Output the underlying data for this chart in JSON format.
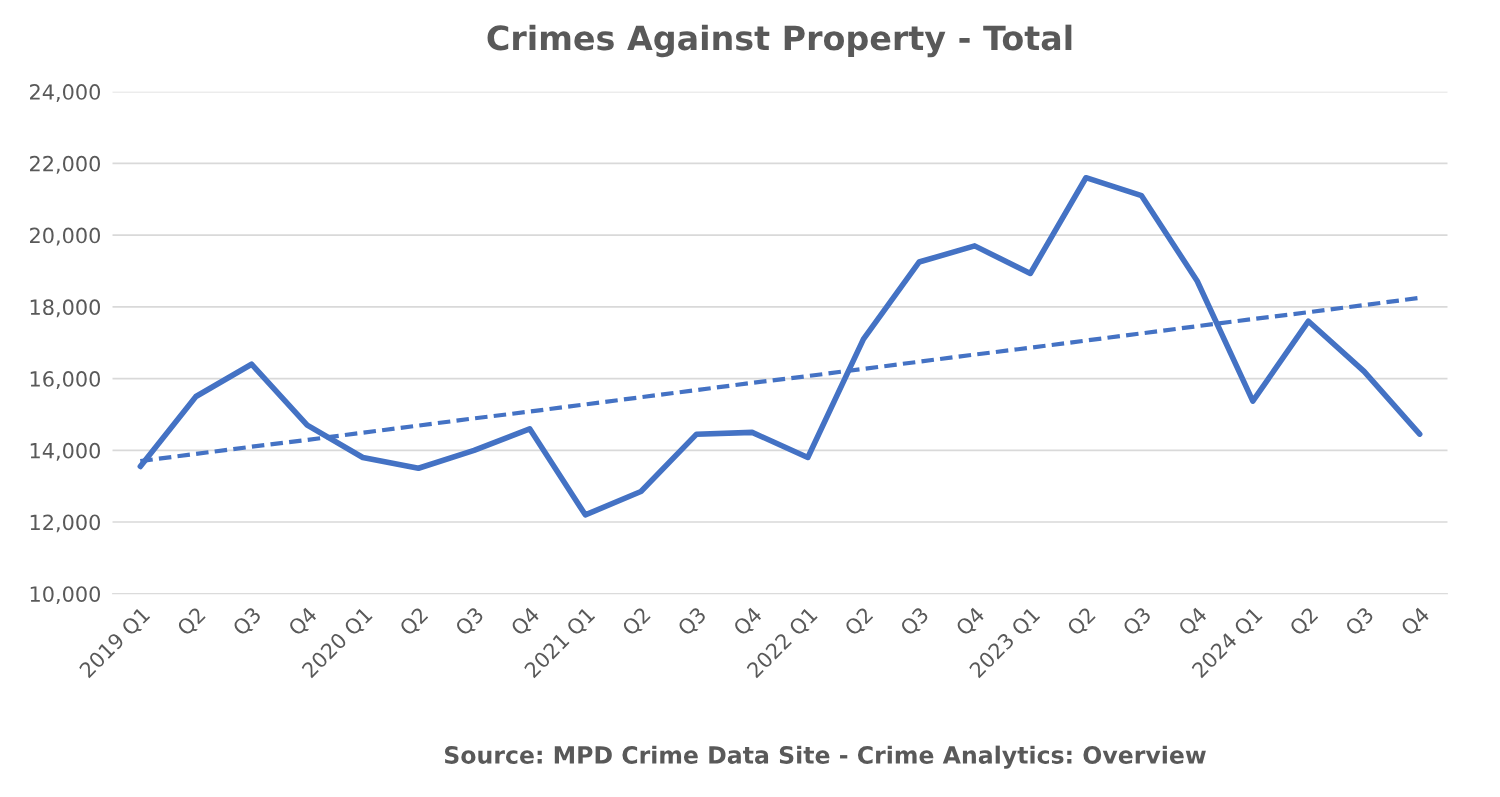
{
  "chart_data": {
    "type": "line",
    "title": "Crimes Against Property - Total",
    "categories": [
      "2019 Q1",
      "Q2",
      "Q3",
      "Q4",
      "2020 Q1",
      "Q2",
      "Q3",
      "Q4",
      "2021 Q1",
      "Q2",
      "Q3",
      "Q4",
      "2022 Q1",
      "Q2",
      "Q3",
      "Q4",
      "2023 Q1",
      "Q2",
      "Q3",
      "Q4",
      "2024 Q1",
      "Q2",
      "Q3",
      "Q4"
    ],
    "series": [
      {
        "color": "#4472c4",
        "line_style": "solid",
        "values": [
          13550,
          15500,
          16400,
          14700,
          13800,
          13500,
          14000,
          14600,
          12200,
          12850,
          14450,
          14500,
          13800,
          17100,
          19250,
          19700,
          18930,
          21600,
          21100,
          18720,
          15370,
          17600,
          16200,
          14450
        ]
      },
      {
        "color": "#4472c4",
        "line_style": "dashed",
        "values": [
          13700,
          13900,
          14100,
          14290,
          14490,
          14690,
          14890,
          15080,
          15280,
          15480,
          15680,
          15880,
          16070,
          16270,
          16470,
          16670,
          16860,
          17060,
          17260,
          17460,
          17660,
          17850,
          18050,
          18250
        ]
      }
    ],
    "ylim": [
      10000,
      24000
    ],
    "yticks": [
      {
        "value": 10000,
        "label": "10,000"
      },
      {
        "value": 12000,
        "label": "12,000"
      },
      {
        "value": 14000,
        "label": "14,000"
      },
      {
        "value": 16000,
        "label": "16,000"
      },
      {
        "value": 18000,
        "label": "18,000"
      },
      {
        "value": 20000,
        "label": "20,000"
      },
      {
        "value": 22000,
        "label": "22,000"
      },
      {
        "value": 24000,
        "label": "24,000"
      }
    ],
    "grid": "y",
    "legend": false,
    "annotations": [
      "Source: MPD Crime Data Site - Crime Analytics: Overview"
    ]
  }
}
